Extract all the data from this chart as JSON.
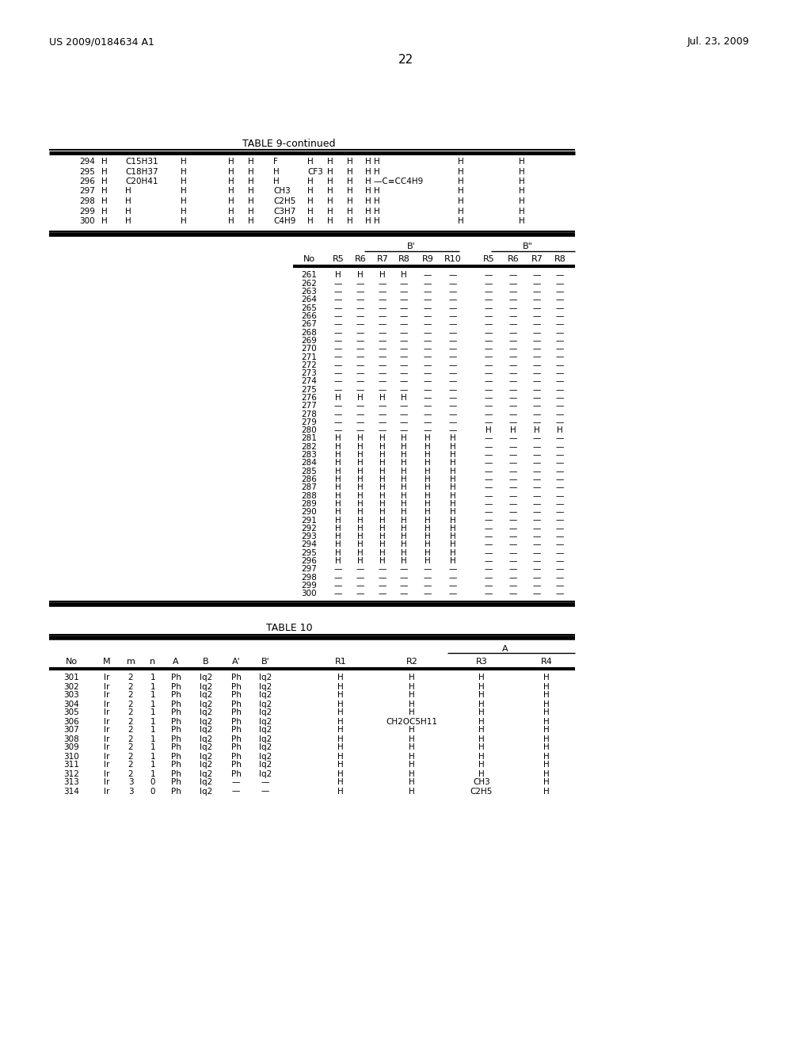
{
  "page_left_header": "US 2009/0184634 A1",
  "page_right_header": "Jul. 23, 2009",
  "page_number": "22",
  "background_color": "#ffffff",
  "table9_title": "TABLE 9-continued",
  "table9_rows_261_300": [
    [
      "261",
      "H",
      "H",
      "H",
      "H",
      "—",
      "—",
      "—",
      "—",
      "—",
      "—"
    ],
    [
      "262",
      "—",
      "—",
      "—",
      "—",
      "—",
      "—",
      "—",
      "—",
      "—",
      "—"
    ],
    [
      "263",
      "—",
      "—",
      "—",
      "—",
      "—",
      "—",
      "—",
      "—",
      "—",
      "—"
    ],
    [
      "264",
      "—",
      "—",
      "—",
      "—",
      "—",
      "—",
      "—",
      "—",
      "—",
      "—"
    ],
    [
      "265",
      "—",
      "—",
      "—",
      "—",
      "—",
      "—",
      "—",
      "—",
      "—",
      "—"
    ],
    [
      "266",
      "—",
      "—",
      "—",
      "—",
      "—",
      "—",
      "—",
      "—",
      "—",
      "—"
    ],
    [
      "267",
      "—",
      "—",
      "—",
      "—",
      "—",
      "—",
      "—",
      "—",
      "—",
      "—"
    ],
    [
      "268",
      "—",
      "—",
      "—",
      "—",
      "—",
      "—",
      "—",
      "—",
      "—",
      "—"
    ],
    [
      "269",
      "—",
      "—",
      "—",
      "—",
      "—",
      "—",
      "—",
      "—",
      "—",
      "—"
    ],
    [
      "270",
      "—",
      "—",
      "—",
      "—",
      "—",
      "—",
      "—",
      "—",
      "—",
      "—"
    ],
    [
      "271",
      "—",
      "—",
      "—",
      "—",
      "—",
      "—",
      "—",
      "—",
      "—",
      "—"
    ],
    [
      "272",
      "—",
      "—",
      "—",
      "—",
      "—",
      "—",
      "—",
      "—",
      "—",
      "—"
    ],
    [
      "273",
      "—",
      "—",
      "—",
      "—",
      "—",
      "—",
      "—",
      "—",
      "—",
      "—"
    ],
    [
      "274",
      "—",
      "—",
      "—",
      "—",
      "—",
      "—",
      "—",
      "—",
      "—",
      "—"
    ],
    [
      "275",
      "—",
      "—",
      "—",
      "—",
      "—",
      "—",
      "—",
      "—",
      "—",
      "—"
    ],
    [
      "276",
      "H",
      "H",
      "H",
      "H",
      "—",
      "—",
      "—",
      "—",
      "—",
      "—"
    ],
    [
      "277",
      "—",
      "—",
      "—",
      "—",
      "—",
      "—",
      "—",
      "—",
      "—",
      "—"
    ],
    [
      "278",
      "—",
      "—",
      "—",
      "—",
      "—",
      "—",
      "—",
      "—",
      "—",
      "—"
    ],
    [
      "279",
      "—",
      "—",
      "—",
      "—",
      "—",
      "—",
      "—",
      "—",
      "—",
      "—"
    ],
    [
      "280",
      "—",
      "—",
      "—",
      "—",
      "—",
      "—",
      "H",
      "H",
      "H",
      "H"
    ],
    [
      "281",
      "H",
      "H",
      "H",
      "H",
      "H",
      "H",
      "—",
      "—",
      "—",
      "—"
    ],
    [
      "282",
      "H",
      "H",
      "H",
      "H",
      "H",
      "H",
      "—",
      "—",
      "—",
      "—"
    ],
    [
      "283",
      "H",
      "H",
      "H",
      "H",
      "H",
      "H",
      "—",
      "—",
      "—",
      "—"
    ],
    [
      "284",
      "H",
      "H",
      "H",
      "H",
      "H",
      "H",
      "—",
      "—",
      "—",
      "—"
    ],
    [
      "285",
      "H",
      "H",
      "H",
      "H",
      "H",
      "H",
      "—",
      "—",
      "—",
      "—"
    ],
    [
      "286",
      "H",
      "H",
      "H",
      "H",
      "H",
      "H",
      "—",
      "—",
      "—",
      "—"
    ],
    [
      "287",
      "H",
      "H",
      "H",
      "H",
      "H",
      "H",
      "—",
      "—",
      "—",
      "—"
    ],
    [
      "288",
      "H",
      "H",
      "H",
      "H",
      "H",
      "H",
      "—",
      "—",
      "—",
      "—"
    ],
    [
      "289",
      "H",
      "H",
      "H",
      "H",
      "H",
      "H",
      "—",
      "—",
      "—",
      "—"
    ],
    [
      "290",
      "H",
      "H",
      "H",
      "H",
      "H",
      "H",
      "—",
      "—",
      "—",
      "—"
    ],
    [
      "291",
      "H",
      "H",
      "H",
      "H",
      "H",
      "H",
      "—",
      "—",
      "—",
      "—"
    ],
    [
      "292",
      "H",
      "H",
      "H",
      "H",
      "H",
      "H",
      "—",
      "—",
      "—",
      "—"
    ],
    [
      "293",
      "H",
      "H",
      "H",
      "H",
      "H",
      "H",
      "—",
      "—",
      "—",
      "—"
    ],
    [
      "294",
      "H",
      "H",
      "H",
      "H",
      "H",
      "H",
      "—",
      "—",
      "—",
      "—"
    ],
    [
      "295",
      "H",
      "H",
      "H",
      "H",
      "H",
      "H",
      "—",
      "—",
      "—",
      "—"
    ],
    [
      "296",
      "H",
      "H",
      "H",
      "H",
      "H",
      "H",
      "—",
      "—",
      "—",
      "—"
    ],
    [
      "297",
      "—",
      "—",
      "—",
      "—",
      "—",
      "—",
      "—",
      "—",
      "—",
      "—"
    ],
    [
      "298",
      "—",
      "—",
      "—",
      "—",
      "—",
      "—",
      "—",
      "—",
      "—",
      "—"
    ],
    [
      "299",
      "—",
      "—",
      "—",
      "—",
      "—",
      "—",
      "—",
      "—",
      "—",
      "—"
    ],
    [
      "300",
      "—",
      "—",
      "—",
      "—",
      "—",
      "—",
      "—",
      "—",
      "—",
      "—"
    ]
  ],
  "table10_title": "TABLE 10",
  "table10_header": [
    "No",
    "M",
    "m",
    "n",
    "A",
    "B",
    "A'",
    "B'",
    "R1",
    "R2",
    "R3",
    "R4"
  ],
  "table10_rows": [
    [
      "301",
      "Ir",
      "2",
      "1",
      "Ph",
      "Iq2",
      "Ph",
      "Iq2",
      "H",
      "H",
      "H",
      "H"
    ],
    [
      "302",
      "Ir",
      "2",
      "1",
      "Ph",
      "Iq2",
      "Ph",
      "Iq2",
      "H",
      "H",
      "H",
      "H"
    ],
    [
      "303",
      "Ir",
      "2",
      "1",
      "Ph",
      "Iq2",
      "Ph",
      "Iq2",
      "H",
      "H",
      "H",
      "H"
    ],
    [
      "304",
      "Ir",
      "2",
      "1",
      "Ph",
      "Iq2",
      "Ph",
      "Iq2",
      "H",
      "H",
      "H",
      "H"
    ],
    [
      "305",
      "Ir",
      "2",
      "1",
      "Ph",
      "Iq2",
      "Ph",
      "Iq2",
      "H",
      "H",
      "H",
      "H"
    ],
    [
      "306",
      "Ir",
      "2",
      "1",
      "Ph",
      "Iq2",
      "Ph",
      "Iq2",
      "H",
      "CH2OC5H11",
      "H",
      "H"
    ],
    [
      "307",
      "Ir",
      "2",
      "1",
      "Ph",
      "Iq2",
      "Ph",
      "Iq2",
      "H",
      "H",
      "H",
      "H"
    ],
    [
      "308",
      "Ir",
      "2",
      "1",
      "Ph",
      "Iq2",
      "Ph",
      "Iq2",
      "H",
      "H",
      "H",
      "H"
    ],
    [
      "309",
      "Ir",
      "2",
      "1",
      "Ph",
      "Iq2",
      "Ph",
      "Iq2",
      "H",
      "H",
      "H",
      "H"
    ],
    [
      "310",
      "Ir",
      "2",
      "1",
      "Ph",
      "Iq2",
      "Ph",
      "Iq2",
      "H",
      "H",
      "H",
      "H"
    ],
    [
      "311",
      "Ir",
      "2",
      "1",
      "Ph",
      "Iq2",
      "Ph",
      "Iq2",
      "H",
      "H",
      "H",
      "H"
    ],
    [
      "312",
      "Ir",
      "2",
      "1",
      "Ph",
      "Iq2",
      "Ph",
      "Iq2",
      "H",
      "H",
      "H",
      "H"
    ],
    [
      "313",
      "Ir",
      "3",
      "0",
      "Ph",
      "Iq2",
      "—",
      "—",
      "H",
      "H",
      "CH3",
      "H"
    ],
    [
      "314",
      "Ir",
      "3",
      "0",
      "Ph",
      "Iq2",
      "—",
      "—",
      "H",
      "H",
      "C2H5",
      "H"
    ]
  ],
  "top_rows": [
    [
      "294",
      "H",
      "C15H31",
      "H",
      "H",
      "H",
      "F",
      "H",
      "H",
      "H",
      "H H",
      "H",
      "H"
    ],
    [
      "295",
      "H",
      "C18H37",
      "H",
      "H",
      "H",
      "H",
      "CF3",
      "H",
      "H",
      "H H",
      "H",
      "H"
    ],
    [
      "296",
      "H",
      "C20H41",
      "H",
      "H",
      "H",
      "H",
      "H",
      "H",
      "H",
      "H —C≡CC4H9",
      "H",
      "H"
    ],
    [
      "297",
      "H",
      "H",
      "H",
      "H",
      "H",
      "CH3",
      "H",
      "H",
      "H",
      "H H",
      "H",
      "H"
    ],
    [
      "298",
      "H",
      "H",
      "H",
      "H",
      "H",
      "C2H5",
      "H",
      "H",
      "H",
      "H H",
      "H",
      "H"
    ],
    [
      "299",
      "H",
      "H",
      "H",
      "H",
      "H",
      "C3H7",
      "H",
      "H",
      "H",
      "H H",
      "H",
      "H"
    ],
    [
      "300",
      "H",
      "H",
      "H",
      "H",
      "H",
      "C4H9",
      "H",
      "H",
      "H",
      "H H",
      "H",
      "H"
    ]
  ]
}
